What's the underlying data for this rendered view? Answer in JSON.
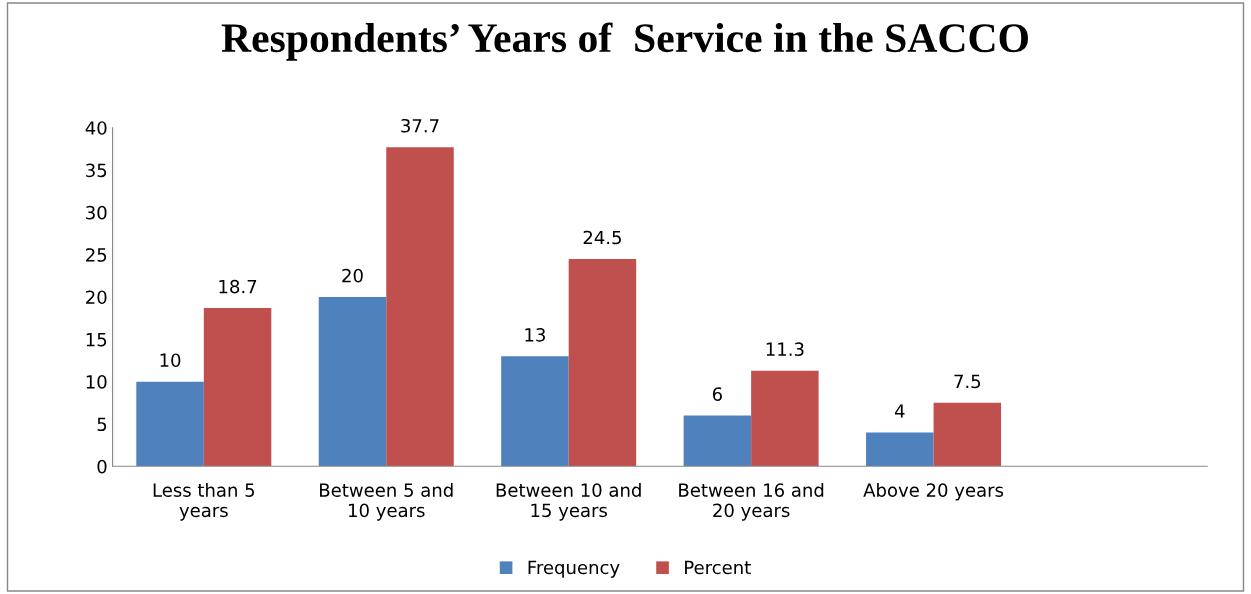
{
  "chart_data": {
    "type": "bar",
    "title": "Respondents’ Years of  Service in the SACCO",
    "categories": [
      "Less than 5\nyears",
      "Between 5 and\n10 years",
      "Between 10 and\n15 years",
      "Between 16 and\n20 years",
      "Above 20 years",
      null
    ],
    "series": [
      {
        "name": "Frequency",
        "color": "#4f81bd",
        "values": [
          10,
          20,
          13,
          6,
          4,
          null
        ]
      },
      {
        "name": "Percent",
        "color": "#c0504d",
        "values": [
          18.7,
          37.7,
          24.5,
          11.3,
          7.5,
          null
        ]
      }
    ],
    "ylim": [
      0,
      40
    ],
    "yticks": [
      0,
      5,
      10,
      15,
      20,
      25,
      30,
      35,
      40
    ],
    "grid": false,
    "legend": "bottom",
    "data_labels": true
  }
}
